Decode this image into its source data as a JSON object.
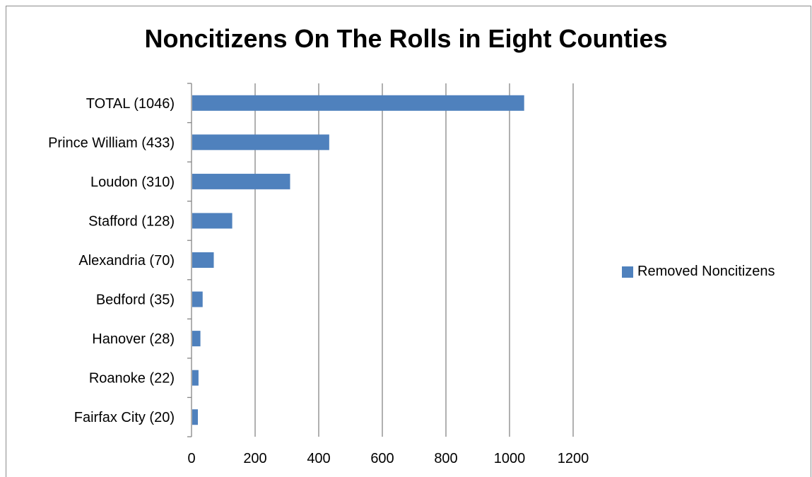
{
  "chart_data": {
    "type": "bar",
    "orientation": "horizontal",
    "title": "Noncitizens On The Rolls in Eight Counties",
    "categories": [
      "TOTAL (1046)",
      "Prince William (433)",
      "Loudon (310)",
      "Stafford (128)",
      "Alexandria (70)",
      "Bedford (35)",
      "Hanover (28)",
      "Roanoke (22)",
      "Fairfax City (20)"
    ],
    "series": [
      {
        "name": "Removed Noncitizens",
        "values": [
          1046,
          433,
          310,
          128,
          70,
          35,
          28,
          22,
          20
        ]
      }
    ],
    "xlim": [
      0,
      1200
    ],
    "xticks": [
      "0",
      "200",
      "400",
      "600",
      "800",
      "1000",
      "1200"
    ],
    "grid": "vertical",
    "legend_position": "right",
    "bar_color": "#4f81bd",
    "grid_color": "#868686"
  }
}
